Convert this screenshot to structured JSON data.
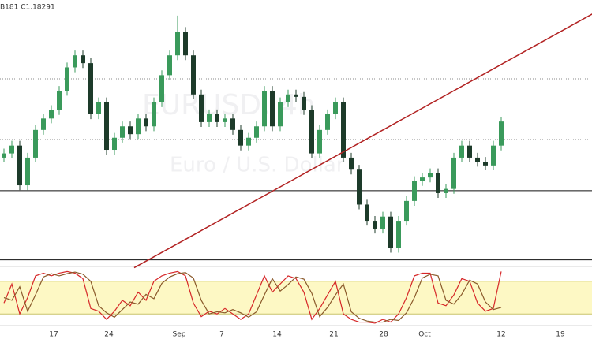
{
  "chart_data": {
    "type": "candlestick",
    "header": "B181 C1.18291",
    "watermark": [
      "EURUSD, 4h",
      "Euro / U.S. Dollar"
    ],
    "ylim": [
      1.1592,
      1.2031
    ],
    "up_color": "#3a9a5b",
    "down_color": "#1d3b2a",
    "open": [
      1.1769,
      1.1776,
      1.1789,
      1.1723,
      1.1769,
      1.1815,
      1.1834,
      1.1848,
      1.188,
      1.1919,
      1.1939,
      1.1926,
      1.1841,
      1.1861,
      1.1782,
      1.1802,
      1.1821,
      1.1808,
      1.1834,
      1.1821,
      1.1861,
      1.1906,
      1.1939,
      1.1978,
      1.1939,
      1.1874,
      1.1828,
      1.1841,
      1.1828,
      1.1834,
      1.1815,
      1.1789,
      1.1802,
      1.1821,
      1.188,
      1.1821,
      1.1861,
      1.1874,
      1.187,
      1.1848,
      1.1776,
      1.1815,
      1.1841,
      1.1861,
      1.1769,
      1.1749,
      1.1691,
      1.1664,
      1.1651,
      1.1671,
      1.1619,
      1.1664,
      1.1697,
      1.173,
      1.1736,
      1.1743,
      1.171,
      1.1717,
      1.1769,
      1.1789,
      1.1769,
      1.1762,
      1.1756,
      1.1789
    ],
    "high": [
      1.1784,
      1.1797,
      1.1797,
      1.1777,
      1.1823,
      1.1842,
      1.1856,
      1.1888,
      1.1927,
      1.1947,
      1.1947,
      1.1934,
      1.1869,
      1.1869,
      1.181,
      1.1829,
      1.1829,
      1.1842,
      1.1842,
      1.1869,
      1.1914,
      1.1947,
      1.2005,
      1.1986,
      1.1947,
      1.1882,
      1.1849,
      1.1849,
      1.1842,
      1.1842,
      1.1823,
      1.181,
      1.1829,
      1.1888,
      1.1888,
      1.1869,
      1.1882,
      1.1882,
      1.1878,
      1.1856,
      1.1823,
      1.1849,
      1.1869,
      1.1869,
      1.1777,
      1.1757,
      1.1699,
      1.1672,
      1.1679,
      1.1679,
      1.1672,
      1.1705,
      1.1738,
      1.1744,
      1.1751,
      1.1751,
      1.1725,
      1.1777,
      1.1797,
      1.1797,
      1.1777,
      1.177,
      1.1797,
      1.1837
    ],
    "low": [
      1.1761,
      1.1768,
      1.1715,
      1.1715,
      1.1761,
      1.1807,
      1.1826,
      1.184,
      1.1872,
      1.1911,
      1.1918,
      1.1833,
      1.1833,
      1.1774,
      1.1774,
      1.1794,
      1.18,
      1.18,
      1.1813,
      1.1813,
      1.1853,
      1.1898,
      1.1931,
      1.1931,
      1.1866,
      1.182,
      1.182,
      1.182,
      1.182,
      1.1807,
      1.1781,
      1.1781,
      1.1794,
      1.1813,
      1.1813,
      1.1813,
      1.1853,
      1.1862,
      1.184,
      1.1768,
      1.1768,
      1.1807,
      1.1833,
      1.1761,
      1.1741,
      1.1683,
      1.1656,
      1.1643,
      1.1643,
      1.1611,
      1.1611,
      1.1656,
      1.1689,
      1.1722,
      1.1728,
      1.1702,
      1.1702,
      1.1709,
      1.1761,
      1.1761,
      1.1754,
      1.1748,
      1.1748,
      1.1781
    ],
    "close": [
      1.1776,
      1.1789,
      1.1723,
      1.1769,
      1.1815,
      1.1834,
      1.1848,
      1.188,
      1.1919,
      1.1939,
      1.1926,
      1.1841,
      1.1861,
      1.1782,
      1.1802,
      1.1821,
      1.1808,
      1.1834,
      1.1821,
      1.1861,
      1.1906,
      1.1939,
      1.1978,
      1.1939,
      1.1874,
      1.1828,
      1.1841,
      1.1828,
      1.1834,
      1.1815,
      1.1789,
      1.1802,
      1.1821,
      1.188,
      1.1821,
      1.1861,
      1.1874,
      1.187,
      1.1848,
      1.1776,
      1.1815,
      1.1841,
      1.1861,
      1.1769,
      1.1749,
      1.1691,
      1.1664,
      1.1651,
      1.1671,
      1.1619,
      1.1664,
      1.1697,
      1.173,
      1.1736,
      1.1743,
      1.171,
      1.1717,
      1.1769,
      1.1789,
      1.1769,
      1.1762,
      1.1756,
      1.1789,
      1.1829
    ],
    "levels": [
      {
        "value": 1.19,
        "style": "dotted"
      },
      {
        "value": 1.1799,
        "style": "dotted"
      },
      {
        "value": 1.1714,
        "style": "solid"
      },
      {
        "value": 1.1599,
        "style": "solid"
      }
    ],
    "trendline": {
      "x": [
        16.5,
        75
      ],
      "y": [
        1.1586,
        1.2011
      ],
      "color": "#b22222"
    },
    "xticks": [
      {
        "value": 6.3,
        "label": "17"
      },
      {
        "value": 13.3,
        "label": "24"
      },
      {
        "value": 22.2,
        "label": "Sep"
      },
      {
        "value": 27.6,
        "label": "7"
      },
      {
        "value": 34.6,
        "label": "14"
      },
      {
        "value": 41.8,
        "label": "21"
      },
      {
        "value": 48.1,
        "label": "28"
      },
      {
        "value": 53.3,
        "label": "Oct"
      },
      {
        "value": 63,
        "label": "12"
      },
      {
        "value": 70.5,
        "label": "19"
      }
    ],
    "stochastic": {
      "ylim": [
        0,
        100
      ],
      "band": [
        20,
        80
      ],
      "band_color": "#fdf8c4",
      "series": [
        {
          "color": "#d62728",
          "values": [
            40,
            75,
            20,
            50,
            90,
            95,
            90,
            95,
            98,
            95,
            85,
            30,
            25,
            10,
            25,
            45,
            35,
            60,
            45,
            80,
            90,
            95,
            98,
            90,
            40,
            15,
            25,
            20,
            30,
            20,
            10,
            20,
            55,
            90,
            60,
            75,
            90,
            85,
            60,
            10,
            30,
            55,
            80,
            20,
            10,
            5,
            5,
            3,
            10,
            5,
            20,
            50,
            90,
            95,
            95,
            40,
            35,
            55,
            85,
            80,
            40,
            25,
            30,
            98
          ]
        },
        {
          "color": "#8b5a2b",
          "values": [
            50,
            45,
            70,
            25,
            55,
            88,
            94,
            90,
            94,
            97,
            93,
            80,
            35,
            22,
            14,
            28,
            42,
            38,
            56,
            48,
            76,
            88,
            94,
            96,
            86,
            45,
            20,
            24,
            22,
            28,
            22,
            14,
            24,
            55,
            85,
            62,
            74,
            88,
            84,
            58,
            15,
            32,
            55,
            75,
            24,
            12,
            7,
            5,
            5,
            10,
            8,
            22,
            50,
            86,
            93,
            90,
            45,
            38,
            56,
            82,
            75,
            42,
            28,
            32
          ]
        }
      ]
    }
  }
}
